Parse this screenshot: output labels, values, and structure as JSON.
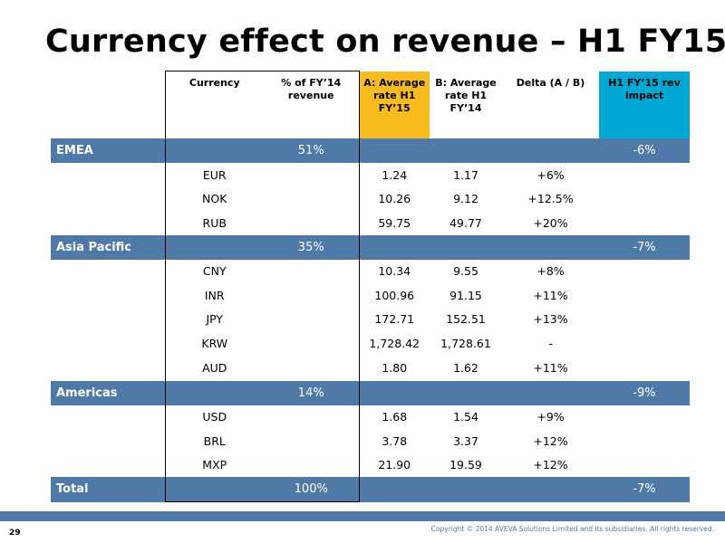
{
  "title": "Currency effect on revenue – H1 FY15",
  "headers": {
    "currency": "Currency",
    "pct_fy14": "% of FY’14 revenue",
    "avg_h1_fy15": "A: Average rate H1 FY’15",
    "avg_h1_fy14": "B: Average rate H1 FY’14",
    "delta": "Delta (A / B)",
    "rev_impact": "H1 FY’15 rev impact"
  },
  "regions": [
    {
      "name": "EMEA",
      "pct": "51%",
      "impact": "-6%",
      "rows": [
        {
          "currency": "EUR",
          "a": "1.24",
          "b": "1.17",
          "delta": "+6%"
        },
        {
          "currency": "NOK",
          "a": "10.26",
          "b": "9.12",
          "delta": "+12.5%"
        },
        {
          "currency": "RUB",
          "a": "59.75",
          "b": "49.77",
          "delta": "+20%"
        }
      ]
    },
    {
      "name": "Asia Pacific",
      "pct": "35%",
      "impact": "-7%",
      "rows": [
        {
          "currency": "CNY",
          "a": "10.34",
          "b": "9.55",
          "delta": "+8%"
        },
        {
          "currency": "INR",
          "a": "100.96",
          "b": "91.15",
          "delta": "+11%"
        },
        {
          "currency": "JPY",
          "a": "172.71",
          "b": "152.51",
          "delta": "+13%"
        },
        {
          "currency": "KRW",
          "a": "1,728.42",
          "b": "1,728.61",
          "delta": "-"
        },
        {
          "currency": "AUD",
          "a": "1.80",
          "b": "1.62",
          "delta": "+11%"
        }
      ]
    },
    {
      "name": "Americas",
      "pct": "14%",
      "impact": "-9%",
      "rows": [
        {
          "currency": "USD",
          "a": "1.68",
          "b": "1.54",
          "delta": "+9%"
        },
        {
          "currency": "BRL",
          "a": "3.78",
          "b": "3.37",
          "delta": "+12%"
        },
        {
          "currency": "MXP",
          "a": "21.90",
          "b": "19.59",
          "delta": "+12%"
        }
      ]
    }
  ],
  "total": {
    "name": "Total",
    "pct": "100%",
    "impact": "-7%"
  },
  "footer": {
    "page": "29",
    "copyright": "Copyright © 2014 AVEVA Solutions Limited and its subsidiaries. All rights reserved."
  },
  "colors": {
    "region_band": "#4f7aa8",
    "highlight_a": "#f9bc1f",
    "highlight_impact": "#00a9d4"
  }
}
